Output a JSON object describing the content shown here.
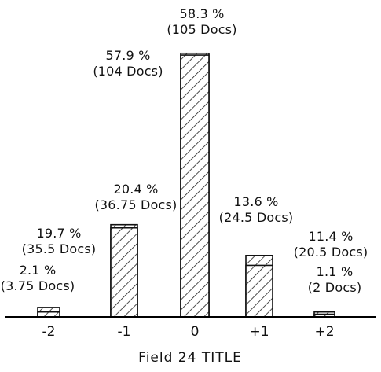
{
  "chart_data": {
    "type": "bar",
    "xlabel": "Field 24 TITLE",
    "categories": [
      "-2",
      "-1",
      "0",
      "+1",
      "+2"
    ],
    "series": [
      {
        "values": [
          1.1,
          19.7,
          57.9,
          11.4,
          0.6
        ]
      },
      {
        "values": [
          2.1,
          20.4,
          58.3,
          13.6,
          1.1
        ]
      }
    ],
    "annotations": [
      {
        "category": "-2",
        "lines": [
          {
            "pct": "2.1 %",
            "docs": "(3.75 Docs)"
          }
        ]
      },
      {
        "category": "-1",
        "lines": [
          {
            "pct": "20.4 %",
            "docs": "(36.75 Docs)"
          },
          {
            "pct": "19.7 %",
            "docs": "(35.5 Docs)"
          }
        ]
      },
      {
        "category": "0",
        "lines": [
          {
            "pct": "58.3 %",
            "docs": "(105 Docs)"
          },
          {
            "pct": "57.9 %",
            "docs": "(104 Docs)"
          }
        ]
      },
      {
        "category": "+1",
        "lines": [
          {
            "pct": "13.6 %",
            "docs": "(24.5 Docs)"
          },
          {
            "pct": "11.4 %",
            "docs": "(20.5 Docs)"
          }
        ]
      },
      {
        "category": "+2",
        "lines": [
          {
            "pct": "1.1 %",
            "docs": "(2 Docs)"
          }
        ]
      }
    ],
    "ylim": [
      0,
      60
    ],
    "grid": false
  }
}
